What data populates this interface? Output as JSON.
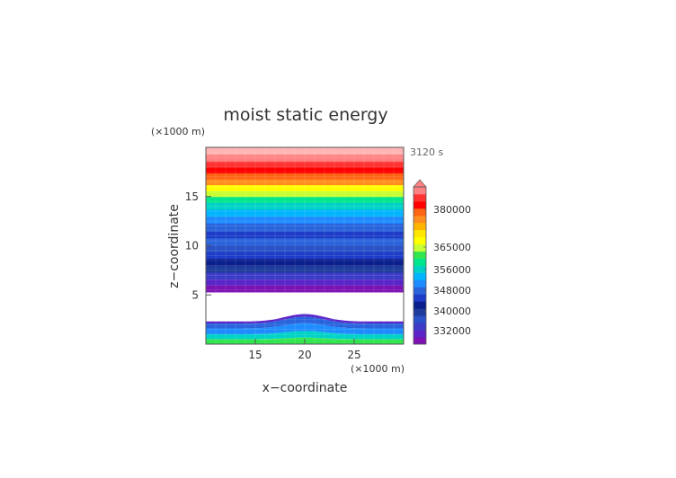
{
  "chart_data": {
    "type": "heatmap",
    "title": "moist static energy",
    "time_label": "3120 s",
    "xlabel": "x−coordinate",
    "ylabel": "z−coordinate",
    "x_unit": "(×1000 m)",
    "y_unit": "(×1000 m)",
    "xlim": [
      10,
      30
    ],
    "ylim": [
      0,
      20
    ],
    "x_ticks": [
      "15",
      "20",
      "25"
    ],
    "y_ticks": [
      "5",
      "10",
      "15"
    ],
    "colorbar_labels": [
      "332000",
      "340000",
      "348000",
      "356000",
      "365000",
      "380000"
    ],
    "colorbar_colors": [
      "#7d12b4",
      "#5a24c8",
      "#3c3cc8",
      "#2a52c8",
      "#1e3c9c",
      "#0a1e8c",
      "#1e3cc8",
      "#2a64dc",
      "#1e8cff",
      "#00b4ff",
      "#00d2c8",
      "#00e68c",
      "#32e650",
      "#c8ff32",
      "#ffff00",
      "#ffe600",
      "#ffb400",
      "#ff8c1e",
      "#ff6414",
      "#ff0000",
      "#ff3232",
      "#ff8282"
    ],
    "bands": [
      {
        "z": [
          0.0,
          0.5
        ],
        "color": "#32e650"
      },
      {
        "z": [
          0.5,
          1.0
        ],
        "color": "#00d2c8"
      },
      {
        "z": [
          1.0,
          1.6
        ],
        "color": "#1e8cff"
      },
      {
        "z": [
          1.6,
          2.1
        ],
        "color": "#2a64dc"
      },
      {
        "z": [
          2.1,
          2.3
        ],
        "color": "#5a24c8"
      },
      {
        "z": [
          5.3,
          6.0
        ],
        "color": "#7d12b4"
      },
      {
        "z": [
          6.0,
          6.6
        ],
        "color": "#5a24c8"
      },
      {
        "z": [
          6.6,
          7.3
        ],
        "color": "#3c3cc8"
      },
      {
        "z": [
          7.3,
          8.0
        ],
        "color": "#1e3c9c"
      },
      {
        "z": [
          8.0,
          8.7
        ],
        "color": "#0a1e8c"
      },
      {
        "z": [
          8.7,
          9.4
        ],
        "color": "#1e3cc8"
      },
      {
        "z": [
          9.4,
          10.1
        ],
        "color": "#2a52c8"
      },
      {
        "z": [
          10.1,
          10.8
        ],
        "color": "#2a64dc"
      },
      {
        "z": [
          10.8,
          11.5
        ],
        "color": "#1e3cc8"
      },
      {
        "z": [
          11.5,
          12.3
        ],
        "color": "#2a64dc"
      },
      {
        "z": [
          12.3,
          13.0
        ],
        "color": "#1e8cff"
      },
      {
        "z": [
          13.0,
          13.7
        ],
        "color": "#00b4ff"
      },
      {
        "z": [
          13.7,
          14.4
        ],
        "color": "#00d2c8"
      },
      {
        "z": [
          14.4,
          15.0
        ],
        "color": "#00e68c"
      },
      {
        "z": [
          15.0,
          15.6
        ],
        "color": "#c8ff32"
      },
      {
        "z": [
          15.6,
          16.2
        ],
        "color": "#ffff00"
      },
      {
        "z": [
          16.2,
          16.8
        ],
        "color": "#ff8c1e"
      },
      {
        "z": [
          16.8,
          17.4
        ],
        "color": "#ff6414"
      },
      {
        "z": [
          17.4,
          18.0
        ],
        "color": "#ff0000"
      },
      {
        "z": [
          18.0,
          18.6
        ],
        "color": "#ff3232"
      },
      {
        "z": [
          18.6,
          19.3
        ],
        "color": "#ff8282"
      },
      {
        "z": [
          19.3,
          20.0
        ],
        "color": "#ffb4b4"
      }
    ],
    "hill": {
      "x_center": 20,
      "z_peak": 2.8,
      "z_base": 2.1,
      "half_width": 3.5
    }
  }
}
